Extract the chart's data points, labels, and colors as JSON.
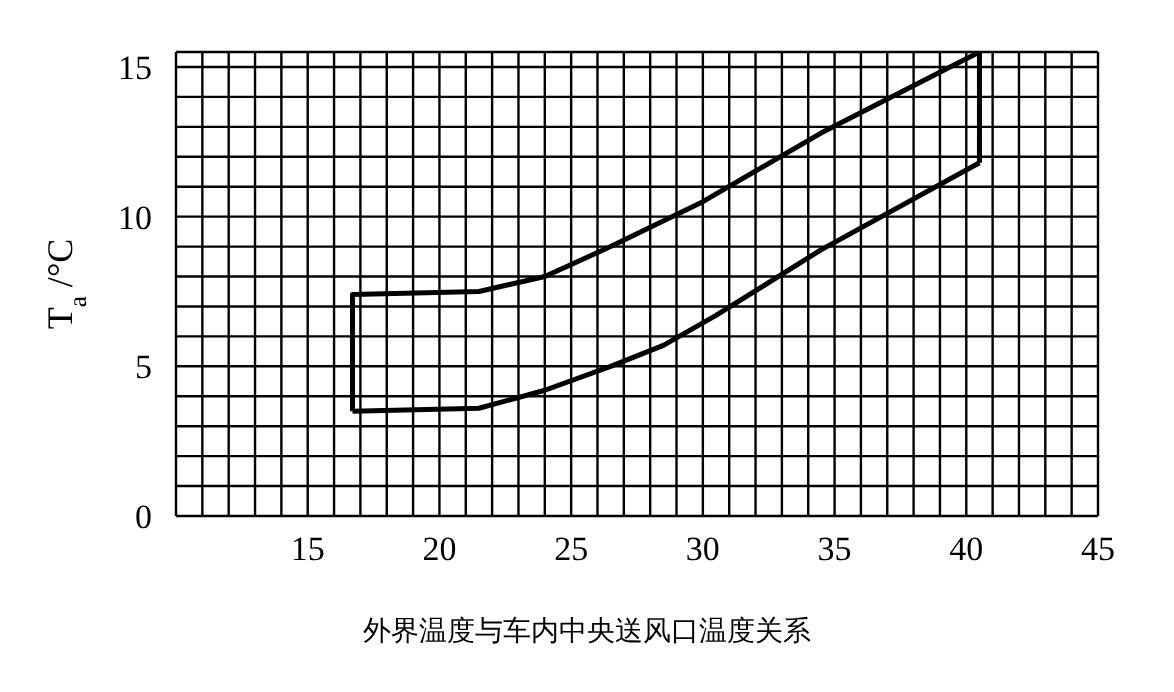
{
  "chart_data": {
    "type": "line",
    "ylabel": "T$_{a}$ /°C",
    "annotations": [
      "外界温度与车内中央送风口温度关系"
    ],
    "series": [
      {
        "color": "#000000",
        "x": [
          16.7,
          16.7,
          21.5,
          24,
          26.5,
          30,
          34.5,
          40.5,
          40.5
        ],
        "values": [
          3.5,
          7.4,
          7.5,
          8,
          9,
          10.5,
          12.8,
          15.5,
          11.8
        ]
      },
      {
        "color": "#000000",
        "x": [
          16.7,
          21.5,
          24,
          26.5,
          28.5,
          30.5,
          34.5,
          40.5
        ],
        "values": [
          3.5,
          3.6,
          4.2,
          5,
          5.7,
          6.7,
          8.9,
          11.8
        ]
      }
    ],
    "xlim": [
      10,
      45
    ],
    "xticks": [
      {
        "value": 10,
        "label": null
      },
      {
        "value": 11,
        "label": null
      },
      {
        "value": 12,
        "label": null
      },
      {
        "value": 13,
        "label": null
      },
      {
        "value": 14,
        "label": null
      },
      15,
      {
        "value": 16,
        "label": null
      },
      {
        "value": 17,
        "label": null
      },
      {
        "value": 18,
        "label": null
      },
      {
        "value": 19,
        "label": null
      },
      20,
      {
        "value": 21,
        "label": null
      },
      {
        "value": 22,
        "label": null
      },
      {
        "value": 23,
        "label": null
      },
      {
        "value": 24,
        "label": null
      },
      25,
      {
        "value": 26,
        "label": null
      },
      {
        "value": 27,
        "label": null
      },
      {
        "value": 28,
        "label": null
      },
      {
        "value": 29,
        "label": null
      },
      30,
      {
        "value": 31,
        "label": null
      },
      {
        "value": 32,
        "label": null
      },
      {
        "value": 33,
        "label": null
      },
      {
        "value": 34,
        "label": null
      },
      35,
      {
        "value": 36,
        "label": null
      },
      {
        "value": 37,
        "label": null
      },
      {
        "value": 38,
        "label": null
      },
      {
        "value": 39,
        "label": null
      },
      40,
      {
        "value": 41,
        "label": null
      },
      {
        "value": 42,
        "label": null
      },
      {
        "value": 43,
        "label": null
      },
      {
        "value": 44,
        "label": null
      },
      45
    ],
    "ylim": [
      0,
      15.5
    ],
    "yticks": [
      0,
      {
        "value": 1,
        "label": null
      },
      {
        "value": 2,
        "label": null
      },
      {
        "value": 3,
        "label": null
      },
      {
        "value": 4,
        "label": null
      },
      5,
      {
        "value": 6,
        "label": null
      },
      {
        "value": 7,
        "label": null
      },
      {
        "value": 8,
        "label": null
      },
      {
        "value": 9,
        "label": null
      },
      10,
      {
        "value": 11,
        "label": null
      },
      {
        "value": 12,
        "label": null
      },
      {
        "value": 13,
        "label": null
      },
      {
        "value": 14,
        "label": null
      },
      15
    ],
    "grid": true,
    "marker": "none",
    "line_style": "solid",
    "legend": false
  }
}
